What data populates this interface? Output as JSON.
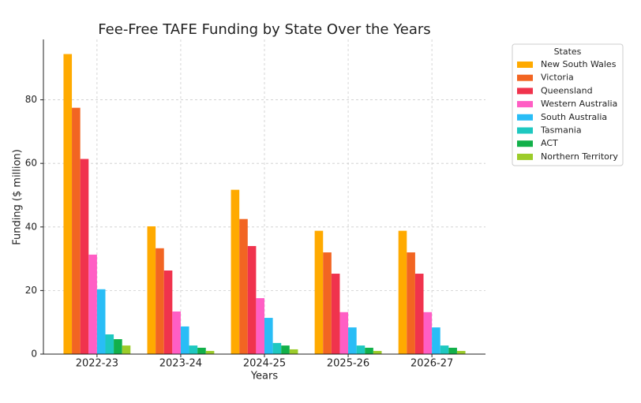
{
  "chart_data": {
    "type": "bar",
    "title": "Fee-Free TAFE Funding by State Over the Years",
    "x_label": "Years",
    "y_label": "Funding ($ million)",
    "legend_title": "States",
    "legend": "upper right outside",
    "categories": [
      "2022-23",
      "2023-24",
      "2024-25",
      "2025-26",
      "2026-27"
    ],
    "series": [
      {
        "name": "New South Wales",
        "color": "#ffaa00",
        "values": [
          94.4,
          40.2,
          51.7,
          38.8,
          38.8
        ]
      },
      {
        "name": "Victoria",
        "color": "#f26522",
        "values": [
          77.5,
          33.3,
          42.5,
          32.0,
          32.0
        ]
      },
      {
        "name": "Queensland",
        "color": "#f0334d",
        "values": [
          61.4,
          26.3,
          34.0,
          25.3,
          25.3
        ]
      },
      {
        "name": "Western Australia",
        "color": "#ff5ec4",
        "values": [
          31.3,
          13.4,
          17.6,
          13.2,
          13.2
        ]
      },
      {
        "name": "South Australia",
        "color": "#29bdf6",
        "values": [
          20.4,
          8.7,
          11.4,
          8.4,
          8.4
        ]
      },
      {
        "name": "Tasmania",
        "color": "#1ec8c0",
        "values": [
          6.2,
          2.7,
          3.5,
          2.7,
          2.7
        ]
      },
      {
        "name": "ACT",
        "color": "#12b04a",
        "values": [
          4.7,
          2.0,
          2.7,
          2.0,
          2.0
        ]
      },
      {
        "name": "Northern Territory",
        "color": "#9ccc2a",
        "values": [
          2.7,
          1.0,
          1.5,
          1.0,
          1.0
        ]
      }
    ],
    "ylim": [
      0,
      99
    ],
    "yticks": [
      0,
      20,
      40,
      60,
      80
    ],
    "grid": true
  }
}
